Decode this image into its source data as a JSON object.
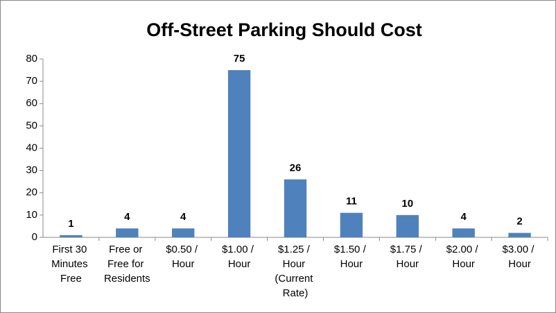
{
  "chart_data": {
    "type": "bar",
    "title": "Off-Street Parking Should Cost",
    "categories": [
      "First 30 Minutes Free",
      "Free or Free for Residents",
      "$0.50 / Hour",
      "$1.00 / Hour",
      "$1.25 / Hour (Current Rate)",
      "$1.50 / Hour",
      "$1.75 / Hour",
      "$2.00 / Hour",
      "$3.00 / Hour"
    ],
    "values": [
      1,
      4,
      4,
      75,
      26,
      11,
      10,
      4,
      2
    ],
    "color": "#4f81bd",
    "ylim": [
      0,
      80
    ],
    "yticks": [
      0,
      10,
      20,
      30,
      40,
      50,
      60,
      70,
      80
    ],
    "grid": false
  }
}
